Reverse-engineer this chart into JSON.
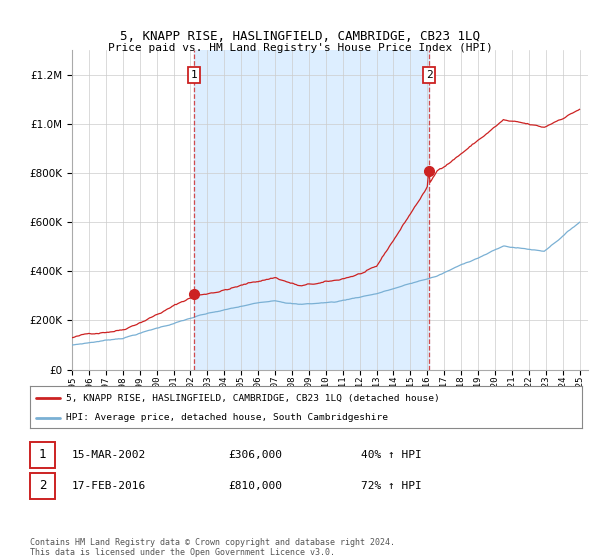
{
  "title": "5, KNAPP RISE, HASLINGFIELD, CAMBRIDGE, CB23 1LQ",
  "subtitle": "Price paid vs. HM Land Registry's House Price Index (HPI)",
  "legend_label_red": "5, KNAPP RISE, HASLINGFIELD, CAMBRIDGE, CB23 1LQ (detached house)",
  "legend_label_blue": "HPI: Average price, detached house, South Cambridgeshire",
  "transaction1_date": "15-MAR-2002",
  "transaction1_price": "£306,000",
  "transaction1_hpi": "40% ↑ HPI",
  "transaction2_date": "17-FEB-2016",
  "transaction2_price": "£810,000",
  "transaction2_hpi": "72% ↑ HPI",
  "footnote": "Contains HM Land Registry data © Crown copyright and database right 2024.\nThis data is licensed under the Open Government Licence v3.0.",
  "red_color": "#cc2222",
  "blue_color": "#7ab0d4",
  "shade_color": "#ddeeff",
  "marker1_x": 2002.2,
  "marker1_y": 306000,
  "marker2_x": 2016.12,
  "marker2_y": 810000,
  "vline1_x": 2002.2,
  "vline2_x": 2016.12,
  "ylim": [
    0,
    1300000
  ],
  "xlim_start": 1995,
  "xlim_end": 2025.5,
  "yticks": [
    0,
    200000,
    400000,
    600000,
    800000,
    1000000,
    1200000
  ]
}
